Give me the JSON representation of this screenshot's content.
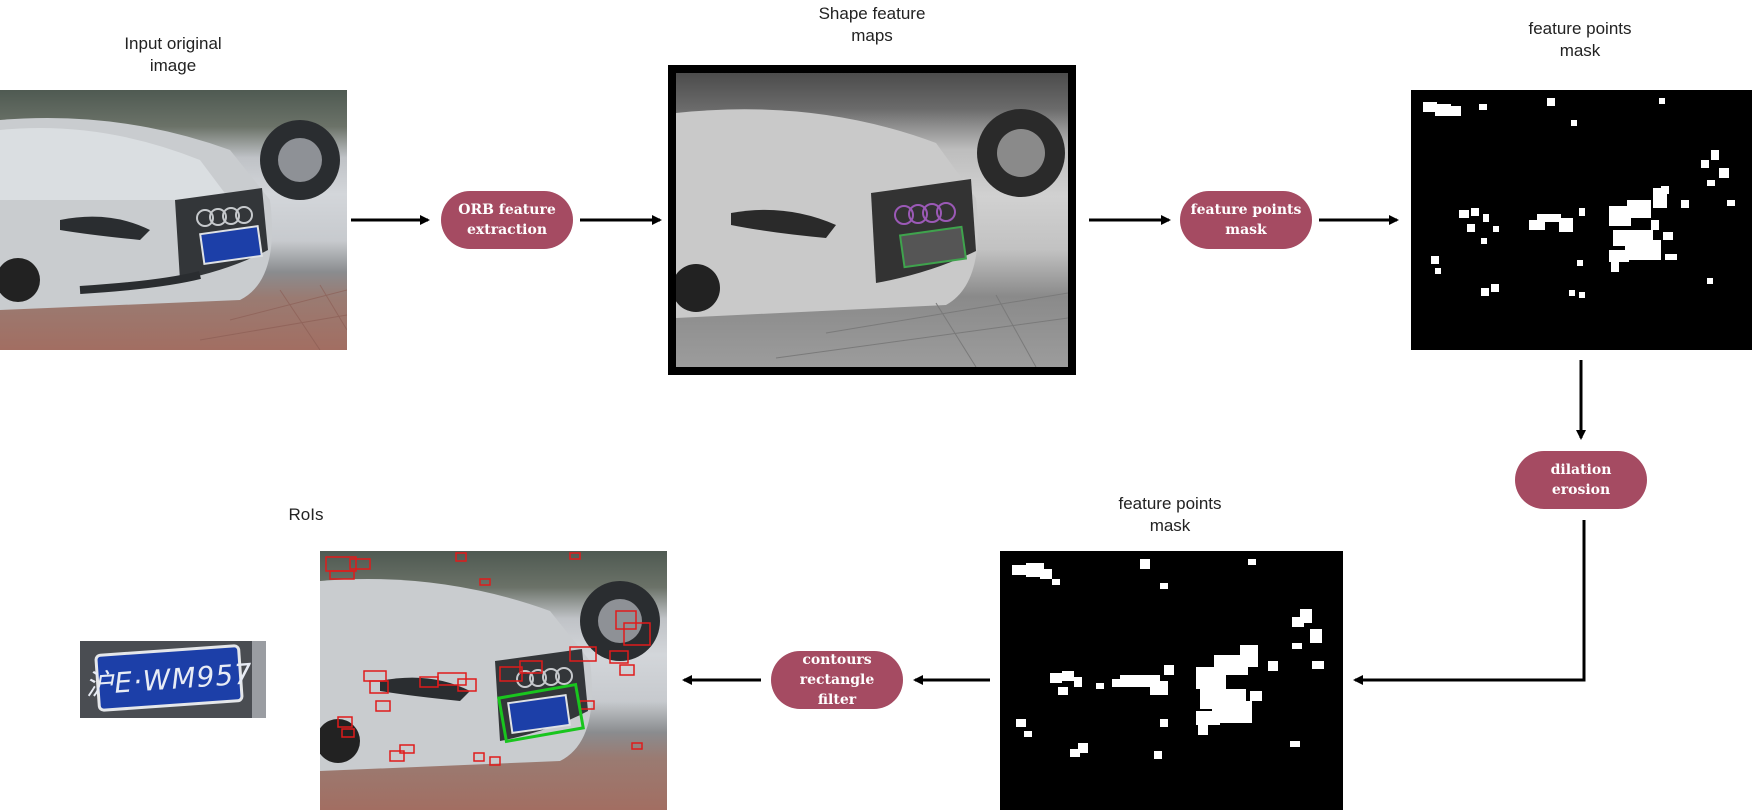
{
  "labels": {
    "input": "Input original\nimage",
    "shape": "Shape feature\nmaps",
    "mask_top": "feature points\nmask",
    "mask_bottom": "feature points\nmask",
    "rois": "RoIs"
  },
  "steps": {
    "orb": "ORB feature\nextraction",
    "mask": "feature points\nmask",
    "dilation": "dilation\nerosion",
    "contours": "contours rectangle\nfilter"
  },
  "plate": {
    "text": "沪E·WM957"
  },
  "colors": {
    "pill": "#a54b62",
    "arrow": "#000000",
    "plate_blue": "#1c3fa8",
    "roi_red": "#e01b1b",
    "roi_green": "#19c51e"
  }
}
